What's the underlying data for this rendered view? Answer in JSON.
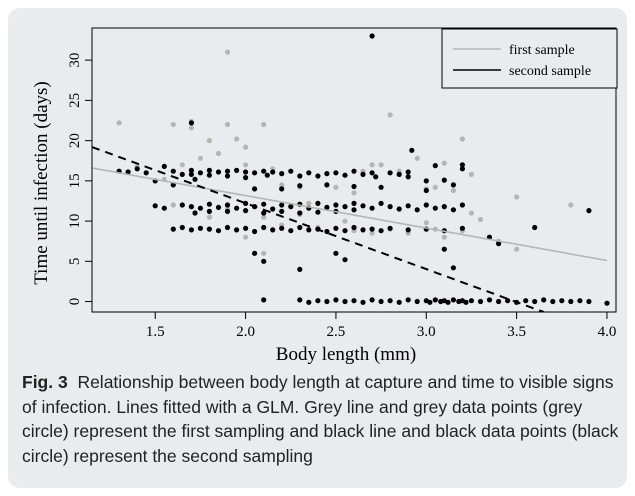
{
  "caption": {
    "label": "Fig. 3",
    "text": "Relationship between body length at capture and time to visible signs of infection. Lines fitted with a GLM. Grey line and grey data points (grey circle) represent the first sampling and black line and black data points (black circle) represent the second sampling"
  },
  "colors": {
    "first": "#b5b5b5",
    "second": "#000000",
    "background": "#e8ecee"
  },
  "chart_data": {
    "type": "scatter",
    "xlabel": "Body length (mm)",
    "ylabel": "Time until infection (days)",
    "xlim": [
      1.15,
      4.05
    ],
    "ylim": [
      -1.3,
      34
    ],
    "xticks": [
      "1.5",
      "2.0",
      "2.5",
      "3.0",
      "3.5",
      "4.0"
    ],
    "yticks": [
      "0",
      "5",
      "10",
      "15",
      "20",
      "25",
      "30"
    ],
    "legend": {
      "position": "top-right",
      "entries": [
        "first sample",
        "second sample"
      ]
    },
    "series": [
      {
        "name": "first sample",
        "color": "#b5b5b5",
        "line": "solid",
        "fit": [
          [
            1.15,
            16.6
          ],
          [
            4.0,
            5.1
          ]
        ],
        "points": [
          [
            1.3,
            22.2
          ],
          [
            1.6,
            22.0
          ],
          [
            1.7,
            21.6
          ],
          [
            1.7,
            22.4
          ],
          [
            1.8,
            20.0
          ],
          [
            1.75,
            17.8
          ],
          [
            1.9,
            31.0
          ],
          [
            1.9,
            22.0
          ],
          [
            1.95,
            20.2
          ],
          [
            2.0,
            19.2
          ],
          [
            2.1,
            22.0
          ],
          [
            2.0,
            17.0
          ],
          [
            1.85,
            18.4
          ],
          [
            1.65,
            17.0
          ],
          [
            2.15,
            16.5
          ],
          [
            2.2,
            14.5
          ],
          [
            2.3,
            14.2
          ],
          [
            2.35,
            12.2
          ],
          [
            2.5,
            14.2
          ],
          [
            2.6,
            13.5
          ],
          [
            2.65,
            16.2
          ],
          [
            2.7,
            17.0
          ],
          [
            2.75,
            17.0
          ],
          [
            2.8,
            23.2
          ],
          [
            2.85,
            16.2
          ],
          [
            2.9,
            15.5
          ],
          [
            2.95,
            17.8
          ],
          [
            3.0,
            14.0
          ],
          [
            3.05,
            14.2
          ],
          [
            3.1,
            17.2
          ],
          [
            3.15,
            13.8
          ],
          [
            3.2,
            20.2
          ],
          [
            3.25,
            15.8
          ],
          [
            3.5,
            13.0
          ],
          [
            3.8,
            12.0
          ],
          [
            1.4,
            16.8
          ],
          [
            1.55,
            15.2
          ],
          [
            1.6,
            12.0
          ],
          [
            1.8,
            10.5
          ],
          [
            1.9,
            11.5
          ],
          [
            2.1,
            10.5
          ],
          [
            2.2,
            9.5
          ],
          [
            2.3,
            10.8
          ],
          [
            2.4,
            9.2
          ],
          [
            2.55,
            10.0
          ],
          [
            2.6,
            8.8
          ],
          [
            2.7,
            8.5
          ],
          [
            2.8,
            9.0
          ],
          [
            2.9,
            8.5
          ],
          [
            3.0,
            9.8
          ],
          [
            3.05,
            9.0
          ],
          [
            3.1,
            8.0
          ],
          [
            3.2,
            8.8
          ],
          [
            3.25,
            11.0
          ],
          [
            3.3,
            10.2
          ],
          [
            3.4,
            7.5
          ],
          [
            3.5,
            6.5
          ],
          [
            2.0,
            8.0
          ],
          [
            2.1,
            6.0
          ],
          [
            3.1,
            6.5
          ]
        ]
      },
      {
        "name": "second sample",
        "color": "#000000",
        "line": "dashed",
        "fit": [
          [
            1.15,
            19.2
          ],
          [
            3.65,
            -1.3
          ]
        ],
        "points": [
          [
            2.7,
            33.0
          ],
          [
            1.3,
            16.2
          ],
          [
            1.35,
            16.1
          ],
          [
            1.4,
            16.5
          ],
          [
            1.45,
            16.0
          ],
          [
            1.5,
            15.0
          ],
          [
            1.55,
            16.8
          ],
          [
            1.6,
            16.2
          ],
          [
            1.65,
            15.8
          ],
          [
            1.7,
            22.2
          ],
          [
            1.7,
            16.3
          ],
          [
            1.7,
            15.8
          ],
          [
            1.72,
            15.2
          ],
          [
            1.75,
            16.0
          ],
          [
            1.8,
            16.3
          ],
          [
            1.8,
            15.7
          ],
          [
            1.85,
            16.1
          ],
          [
            1.9,
            16.2
          ],
          [
            1.9,
            15.6
          ],
          [
            1.95,
            16.3
          ],
          [
            2.0,
            16.1
          ],
          [
            2.0,
            15.4
          ],
          [
            2.05,
            16.0
          ],
          [
            2.1,
            16.2
          ],
          [
            2.12,
            15.7
          ],
          [
            2.15,
            16.1
          ],
          [
            2.2,
            15.9
          ],
          [
            2.25,
            16.2
          ],
          [
            2.3,
            15.6
          ],
          [
            2.35,
            16.0
          ],
          [
            2.4,
            15.6
          ],
          [
            2.45,
            15.9
          ],
          [
            2.5,
            16.0
          ],
          [
            2.55,
            15.7
          ],
          [
            2.6,
            16.2
          ],
          [
            2.65,
            15.8
          ],
          [
            2.7,
            16.0
          ],
          [
            2.72,
            15.5
          ],
          [
            2.8,
            16.0
          ],
          [
            2.85,
            15.8
          ],
          [
            2.9,
            16.1
          ],
          [
            2.9,
            15.5
          ],
          [
            2.92,
            18.8
          ],
          [
            3.0,
            15.0
          ],
          [
            3.05,
            16.9
          ],
          [
            3.1,
            15.1
          ],
          [
            3.15,
            14.5
          ],
          [
            3.2,
            17.0
          ],
          [
            3.2,
            16.5
          ],
          [
            1.6,
            14.5
          ],
          [
            2.05,
            14.0
          ],
          [
            2.2,
            14.0
          ],
          [
            2.3,
            14.4
          ],
          [
            2.45,
            14.5
          ],
          [
            2.6,
            14.3
          ],
          [
            2.75,
            14.2
          ],
          [
            3.0,
            13.8
          ],
          [
            1.5,
            11.9
          ],
          [
            1.55,
            11.6
          ],
          [
            1.65,
            12.0
          ],
          [
            1.7,
            11.8
          ],
          [
            1.72,
            11.0
          ],
          [
            1.75,
            11.6
          ],
          [
            1.8,
            12.1
          ],
          [
            1.8,
            11.2
          ],
          [
            1.85,
            11.7
          ],
          [
            1.9,
            12.0
          ],
          [
            1.9,
            11.2
          ],
          [
            1.95,
            11.6
          ],
          [
            2.0,
            12.2
          ],
          [
            2.0,
            11.3
          ],
          [
            2.05,
            11.8
          ],
          [
            2.1,
            12.1
          ],
          [
            2.1,
            11.0
          ],
          [
            2.15,
            11.5
          ],
          [
            2.2,
            12.0
          ],
          [
            2.2,
            11.2
          ],
          [
            2.25,
            11.8
          ],
          [
            2.3,
            12.1
          ],
          [
            2.3,
            11.0
          ],
          [
            2.35,
            11.6
          ],
          [
            2.4,
            12.2
          ],
          [
            2.4,
            11.1
          ],
          [
            2.45,
            11.7
          ],
          [
            2.5,
            12.0
          ],
          [
            2.5,
            11.2
          ],
          [
            2.55,
            11.8
          ],
          [
            2.6,
            12.2
          ],
          [
            2.6,
            11.4
          ],
          [
            2.65,
            11.9
          ],
          [
            2.7,
            11.6
          ],
          [
            2.75,
            12.2
          ],
          [
            2.8,
            11.8
          ],
          [
            2.85,
            11.5
          ],
          [
            2.9,
            11.9
          ],
          [
            2.95,
            11.4
          ],
          [
            3.0,
            12.0
          ],
          [
            3.05,
            11.6
          ],
          [
            3.1,
            11.8
          ],
          [
            3.15,
            11.4
          ],
          [
            3.2,
            12.0
          ],
          [
            3.9,
            11.3
          ],
          [
            1.6,
            9.0
          ],
          [
            1.65,
            9.2
          ],
          [
            1.7,
            8.9
          ],
          [
            1.75,
            9.1
          ],
          [
            1.8,
            9.0
          ],
          [
            1.85,
            8.8
          ],
          [
            1.9,
            9.2
          ],
          [
            1.95,
            8.9
          ],
          [
            2.0,
            9.1
          ],
          [
            2.05,
            8.7
          ],
          [
            2.1,
            9.2
          ],
          [
            2.15,
            8.9
          ],
          [
            2.2,
            9.1
          ],
          [
            2.25,
            8.8
          ],
          [
            2.3,
            9.2
          ],
          [
            2.35,
            8.9
          ],
          [
            2.4,
            9.0
          ],
          [
            2.45,
            8.7
          ],
          [
            2.5,
            9.1
          ],
          [
            2.55,
            8.8
          ],
          [
            2.6,
            9.2
          ],
          [
            2.65,
            8.9
          ],
          [
            2.7,
            9.0
          ],
          [
            2.75,
            8.8
          ],
          [
            2.8,
            9.1
          ],
          [
            2.9,
            8.9
          ],
          [
            3.0,
            9.0
          ],
          [
            3.1,
            8.8
          ],
          [
            3.2,
            9.1
          ],
          [
            3.35,
            8.0
          ],
          [
            3.4,
            7.2
          ],
          [
            3.6,
            9.2
          ],
          [
            3.1,
            6.5
          ],
          [
            3.15,
            4.2
          ],
          [
            2.05,
            6.0
          ],
          [
            2.1,
            5.0
          ],
          [
            2.5,
            6.0
          ],
          [
            2.55,
            5.2
          ],
          [
            2.3,
            4.0
          ],
          [
            2.1,
            0.2
          ],
          [
            2.3,
            0.2
          ],
          [
            2.35,
            -0.1
          ],
          [
            2.4,
            0.1
          ],
          [
            2.45,
            0.0
          ],
          [
            2.5,
            0.2
          ],
          [
            2.55,
            0.0
          ],
          [
            2.6,
            0.1
          ],
          [
            2.65,
            -0.1
          ],
          [
            2.7,
            0.2
          ],
          [
            2.75,
            0.0
          ],
          [
            2.8,
            0.1
          ],
          [
            2.85,
            -0.1
          ],
          [
            2.9,
            0.2
          ],
          [
            2.95,
            0.0
          ],
          [
            3.0,
            0.1
          ],
          [
            3.02,
            -0.1
          ],
          [
            3.05,
            0.2
          ],
          [
            3.08,
            0.0
          ],
          [
            3.1,
            0.1
          ],
          [
            3.12,
            -0.1
          ],
          [
            3.15,
            0.2
          ],
          [
            3.18,
            0.0
          ],
          [
            3.2,
            0.1
          ],
          [
            3.22,
            -0.1
          ],
          [
            3.25,
            0.1
          ],
          [
            3.3,
            0.0
          ],
          [
            3.35,
            0.2
          ],
          [
            3.4,
            0.0
          ],
          [
            3.45,
            0.1
          ],
          [
            3.5,
            -0.1
          ],
          [
            3.55,
            0.1
          ],
          [
            3.6,
            0.0
          ],
          [
            3.65,
            0.2
          ],
          [
            3.7,
            0.0
          ],
          [
            3.75,
            0.1
          ],
          [
            3.8,
            0.0
          ],
          [
            3.85,
            0.1
          ],
          [
            3.9,
            0.0
          ],
          [
            4.0,
            -0.2
          ]
        ]
      }
    ]
  }
}
